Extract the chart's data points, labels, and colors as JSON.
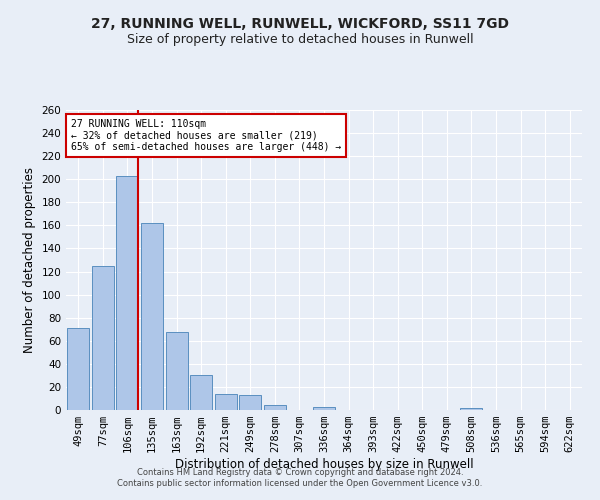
{
  "title": "27, RUNNING WELL, RUNWELL, WICKFORD, SS11 7GD",
  "subtitle": "Size of property relative to detached houses in Runwell",
  "xlabel": "Distribution of detached houses by size in Runwell",
  "ylabel": "Number of detached properties",
  "footer_line1": "Contains HM Land Registry data © Crown copyright and database right 2024.",
  "footer_line2": "Contains public sector information licensed under the Open Government Licence v3.0.",
  "bar_labels": [
    "49sqm",
    "77sqm",
    "106sqm",
    "135sqm",
    "163sqm",
    "192sqm",
    "221sqm",
    "249sqm",
    "278sqm",
    "307sqm",
    "336sqm",
    "364sqm",
    "393sqm",
    "422sqm",
    "450sqm",
    "479sqm",
    "508sqm",
    "536sqm",
    "565sqm",
    "594sqm",
    "622sqm"
  ],
  "bar_values": [
    71,
    125,
    203,
    162,
    68,
    30,
    14,
    13,
    4,
    0,
    3,
    0,
    0,
    0,
    0,
    0,
    2,
    0,
    0,
    0,
    0
  ],
  "bar_color": "#aec6e8",
  "bar_edge_color": "#5a8fc0",
  "vline_color": "#cc0000",
  "annotation_title": "27 RUNNING WELL: 110sqm",
  "annotation_line1": "← 32% of detached houses are smaller (219)",
  "annotation_line2": "65% of semi-detached houses are larger (448) →",
  "annotation_box_color": "#cc0000",
  "ylim": [
    0,
    260
  ],
  "yticks": [
    0,
    20,
    40,
    60,
    80,
    100,
    120,
    140,
    160,
    180,
    200,
    220,
    240,
    260
  ],
  "background_color": "#e8eef7",
  "grid_color": "#ffffff",
  "title_fontsize": 10,
  "subtitle_fontsize": 9,
  "axis_label_fontsize": 8.5,
  "tick_fontsize": 7.5,
  "footer_fontsize": 6
}
